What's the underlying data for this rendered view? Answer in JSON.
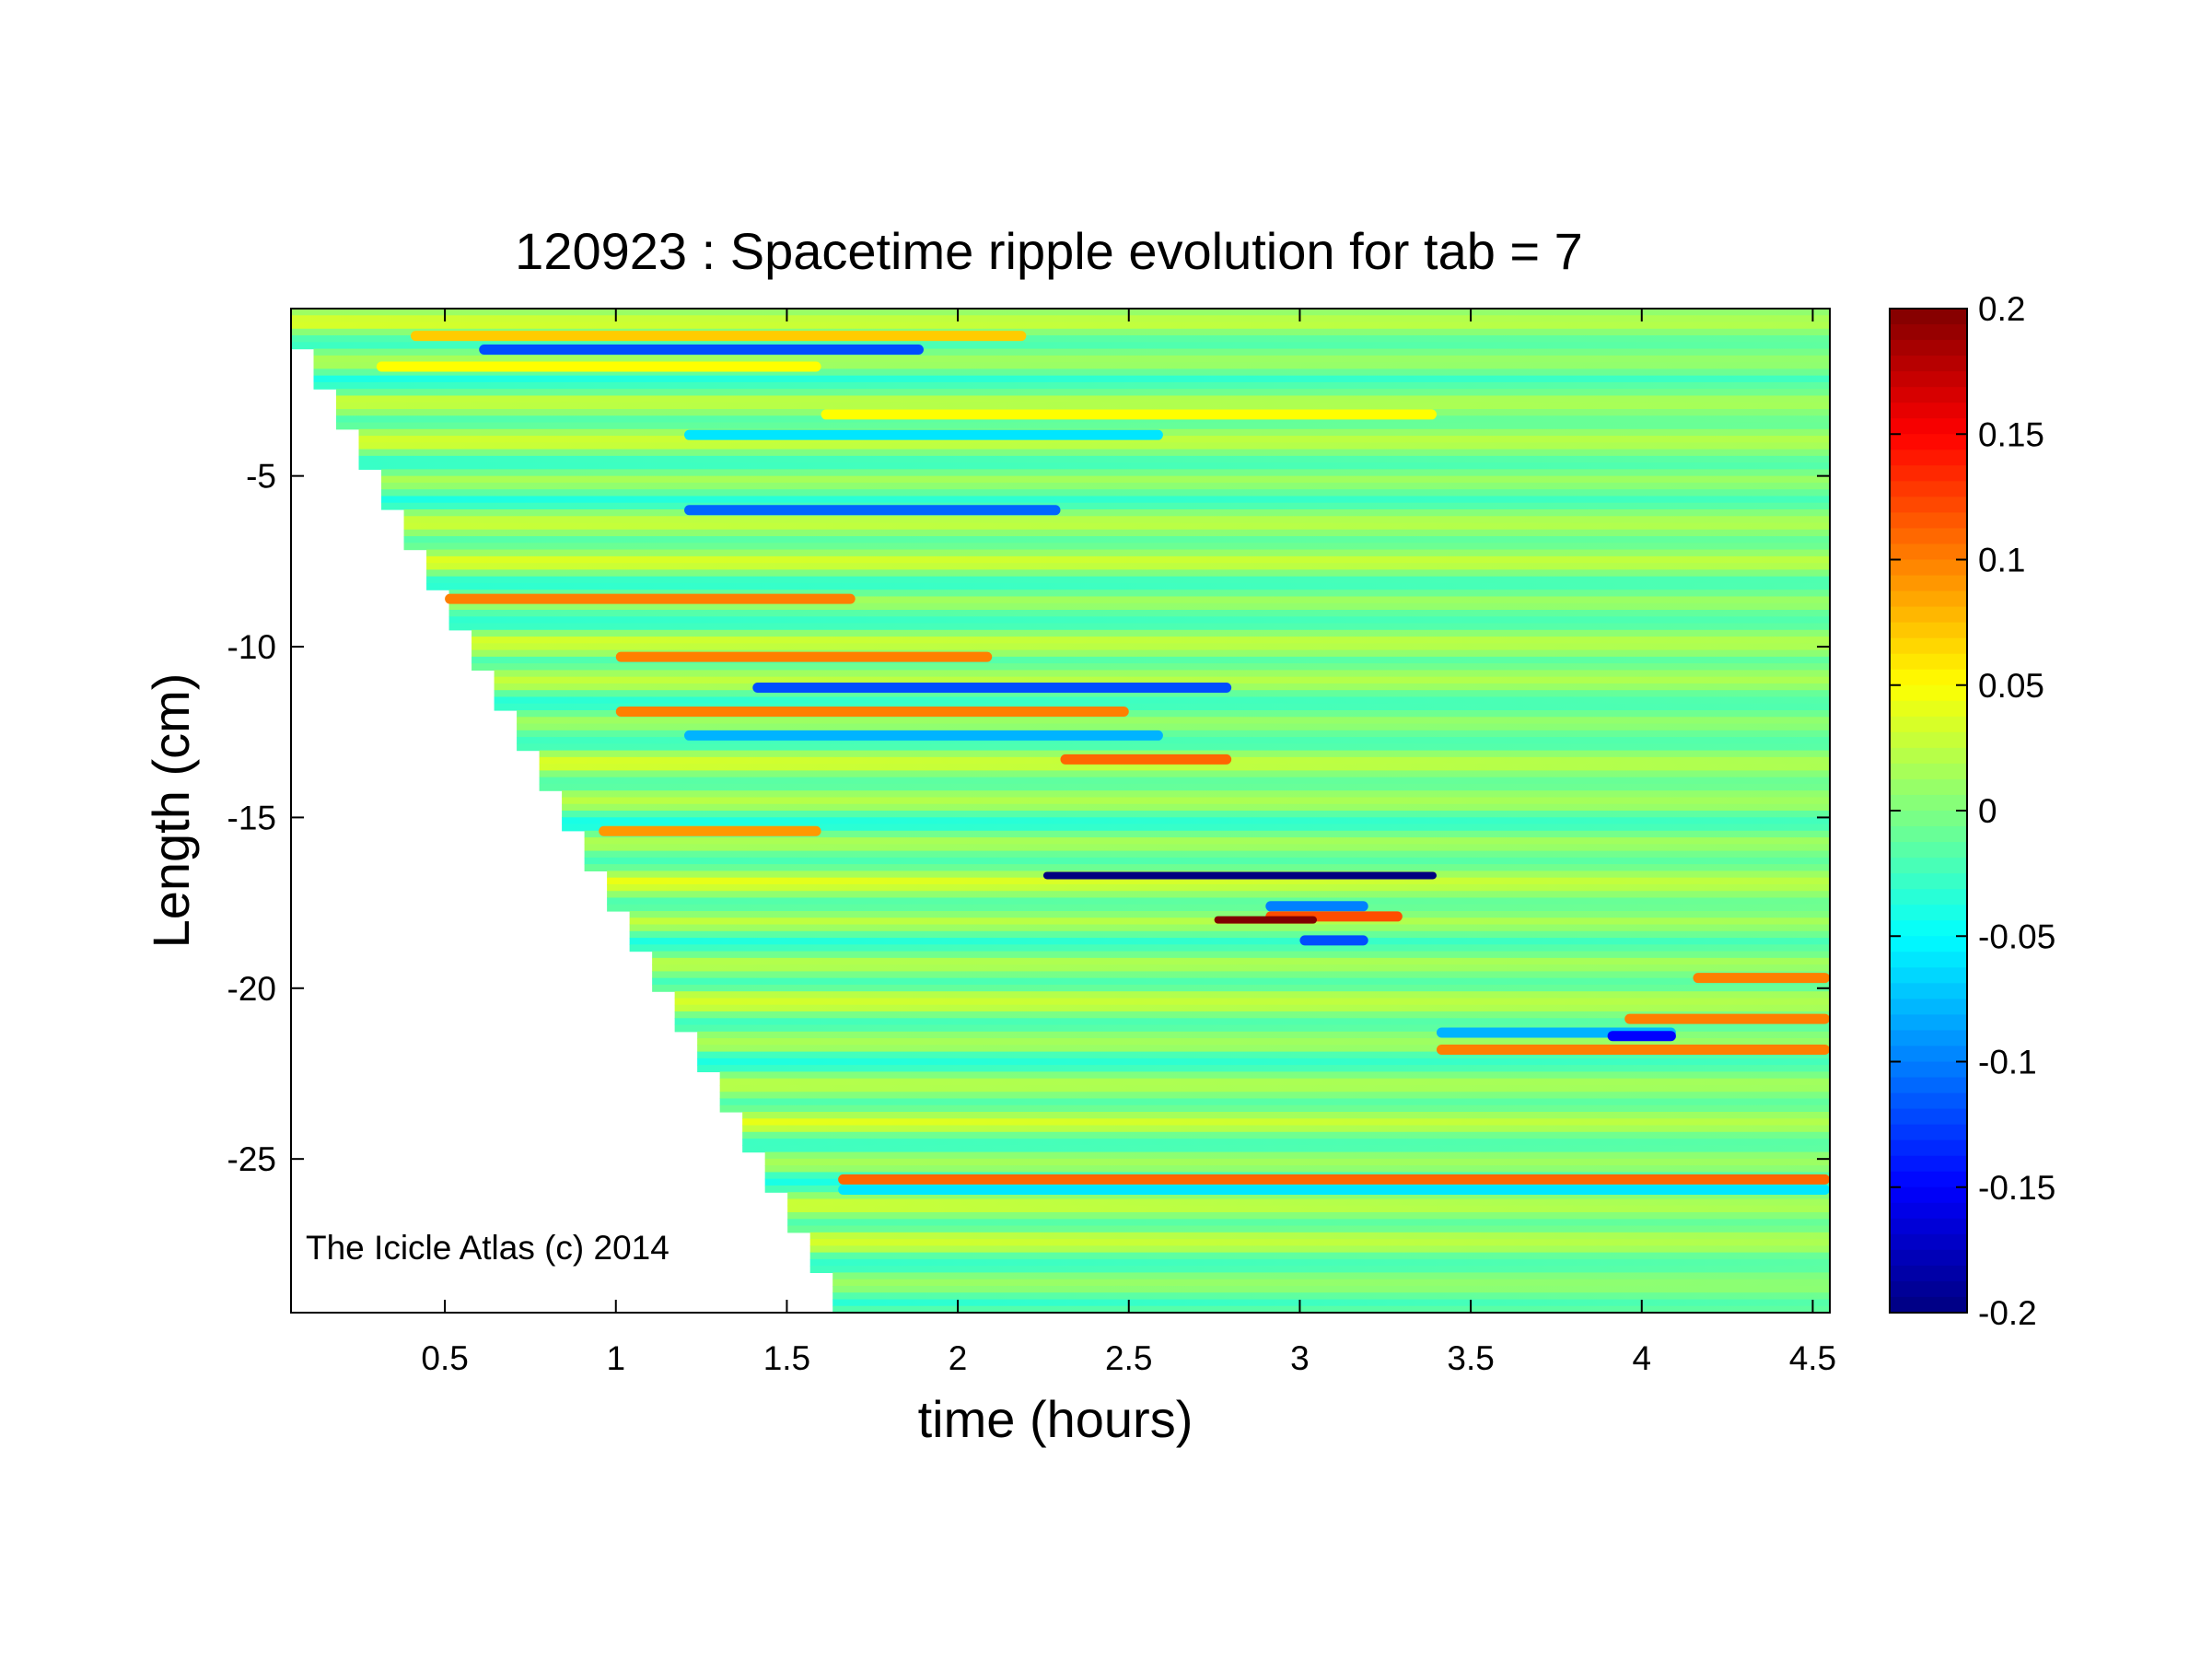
{
  "chart_data": {
    "type": "heatmap",
    "title": "120923 : Spacetime ripple evolution for tab = 7",
    "xlabel": "time (hours)",
    "ylabel": "Length (cm)",
    "xlim": [
      0.05,
      4.55
    ],
    "ylim": [
      -29.5,
      -0.1
    ],
    "xticks": [
      0.5,
      1,
      1.5,
      2,
      2.5,
      3,
      3.5,
      4,
      4.5
    ],
    "xtick_labels": [
      "0.5",
      "1",
      "1.5",
      "2",
      "2.5",
      "3",
      "3.5",
      "4",
      "4.5"
    ],
    "yticks": [
      -5,
      -10,
      -15,
      -20,
      -25
    ],
    "ytick_labels": [
      "-5",
      "-10",
      "-15",
      "-20",
      "-25"
    ],
    "colorbar": {
      "colormap": "jet",
      "clim": [
        -0.2,
        0.2
      ],
      "ticks": [
        0.2,
        0.15,
        0.1,
        0.05,
        0,
        -0.05,
        -0.1,
        -0.15,
        -0.2
      ],
      "tick_labels": [
        "0.2",
        "0.15",
        "0.1",
        "0.05",
        "0",
        "-0.05",
        "-0.1",
        "-0.15",
        "-0.2"
      ]
    },
    "data_boundary": {
      "description_points": [
        [
          0.05,
          -1.3
        ],
        [
          1.63,
          -29.5
        ]
      ]
    },
    "features": [
      {
        "y": -0.9,
        "t_start": 0.4,
        "t_end": 2.2,
        "value": 0.07
      },
      {
        "y": -1.3,
        "t_start": 0.6,
        "t_end": 1.9,
        "value": -0.12
      },
      {
        "y": -1.8,
        "t_start": 0.3,
        "t_end": 1.6,
        "value": 0.05
      },
      {
        "y": -3.2,
        "t_start": 1.6,
        "t_end": 3.4,
        "value": 0.05
      },
      {
        "y": -3.8,
        "t_start": 1.2,
        "t_end": 2.6,
        "value": -0.06
      },
      {
        "y": -6.0,
        "t_start": 1.2,
        "t_end": 2.3,
        "value": -0.11
      },
      {
        "y": -8.6,
        "t_start": 0.5,
        "t_end": 1.7,
        "value": 0.1
      },
      {
        "y": -10.3,
        "t_start": 1.0,
        "t_end": 2.1,
        "value": 0.1
      },
      {
        "y": -11.2,
        "t_start": 1.4,
        "t_end": 2.8,
        "value": -0.12
      },
      {
        "y": -11.9,
        "t_start": 1.0,
        "t_end": 2.5,
        "value": 0.1
      },
      {
        "y": -12.6,
        "t_start": 1.2,
        "t_end": 2.6,
        "value": -0.08
      },
      {
        "y": -13.3,
        "t_start": 2.3,
        "t_end": 2.8,
        "value": 0.11
      },
      {
        "y": -15.4,
        "t_start": 0.95,
        "t_end": 1.6,
        "value": 0.09
      },
      {
        "y": -16.7,
        "t_start": 2.25,
        "t_end": 3.4,
        "value": -0.2
      },
      {
        "y": -17.6,
        "t_start": 2.9,
        "t_end": 3.2,
        "value": -0.1
      },
      {
        "y": -17.9,
        "t_start": 2.9,
        "t_end": 3.3,
        "value": 0.12
      },
      {
        "y": -18.0,
        "t_start": 2.75,
        "t_end": 3.05,
        "value": 0.2
      },
      {
        "y": -18.6,
        "t_start": 3.0,
        "t_end": 3.2,
        "value": -0.12
      },
      {
        "y": -19.7,
        "t_start": 4.15,
        "t_end": 4.55,
        "value": 0.1
      },
      {
        "y": -20.9,
        "t_start": 3.95,
        "t_end": 4.55,
        "value": 0.1
      },
      {
        "y": -21.3,
        "t_start": 3.4,
        "t_end": 4.1,
        "value": -0.08
      },
      {
        "y": -21.4,
        "t_start": 3.9,
        "t_end": 4.1,
        "value": -0.15
      },
      {
        "y": -21.8,
        "t_start": 3.4,
        "t_end": 4.55,
        "value": 0.1
      },
      {
        "y": -25.6,
        "t_start": 1.65,
        "t_end": 4.55,
        "value": 0.11
      },
      {
        "y": -25.9,
        "t_start": 1.65,
        "t_end": 4.55,
        "value": -0.06
      }
    ]
  },
  "annotation": {
    "watermark": "The Icicle Atlas (c) 2014"
  }
}
